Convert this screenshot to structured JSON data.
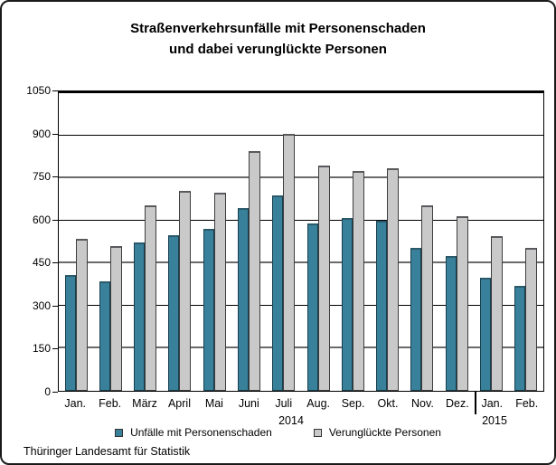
{
  "title": {
    "line1": "Straßenverkehrsunfälle mit Personenschaden",
    "line2": "und dabei verunglückte Personen"
  },
  "footer": {
    "source": "Thüringer Landesamt für Statistik"
  },
  "colors": {
    "accidents_bar": "#39809B",
    "persons_bar": "#C9C9C9",
    "grid_major": "#6b6b6b",
    "grid_minor": "#000000"
  },
  "chart_data": {
    "type": "bar",
    "title": "Straßenverkehrsunfälle mit Personenschaden und dabei verunglückte Personen",
    "categories": [
      "Jan.",
      "Feb.",
      "März",
      "April",
      "Mai",
      "Juni",
      "Juli",
      "Aug.",
      "Sep.",
      "Okt.",
      "Nov.",
      "Dez.",
      "Jan.",
      "Feb."
    ],
    "year_groups": [
      {
        "label": "2014",
        "span": 12
      },
      {
        "label": "2015",
        "span": 2
      }
    ],
    "series": [
      {
        "name": "Unfälle mit Personenschaden",
        "color": "#39809B",
        "values": [
          410,
          385,
          525,
          550,
          570,
          645,
          690,
          590,
          610,
          600,
          505,
          475,
          400,
          370
        ]
      },
      {
        "name": "Verunglückte Personen",
        "color": "#C9C9C9",
        "values": [
          535,
          510,
          655,
          705,
          700,
          845,
          905,
          795,
          775,
          785,
          655,
          615,
          545,
          505
        ]
      }
    ],
    "xlabel": "",
    "ylabel": "",
    "ylim": [
      0,
      1050
    ],
    "yticks": [
      0,
      150,
      300,
      450,
      600,
      750,
      900,
      1050
    ],
    "grid": "horizontal",
    "legend_position": "bottom"
  }
}
